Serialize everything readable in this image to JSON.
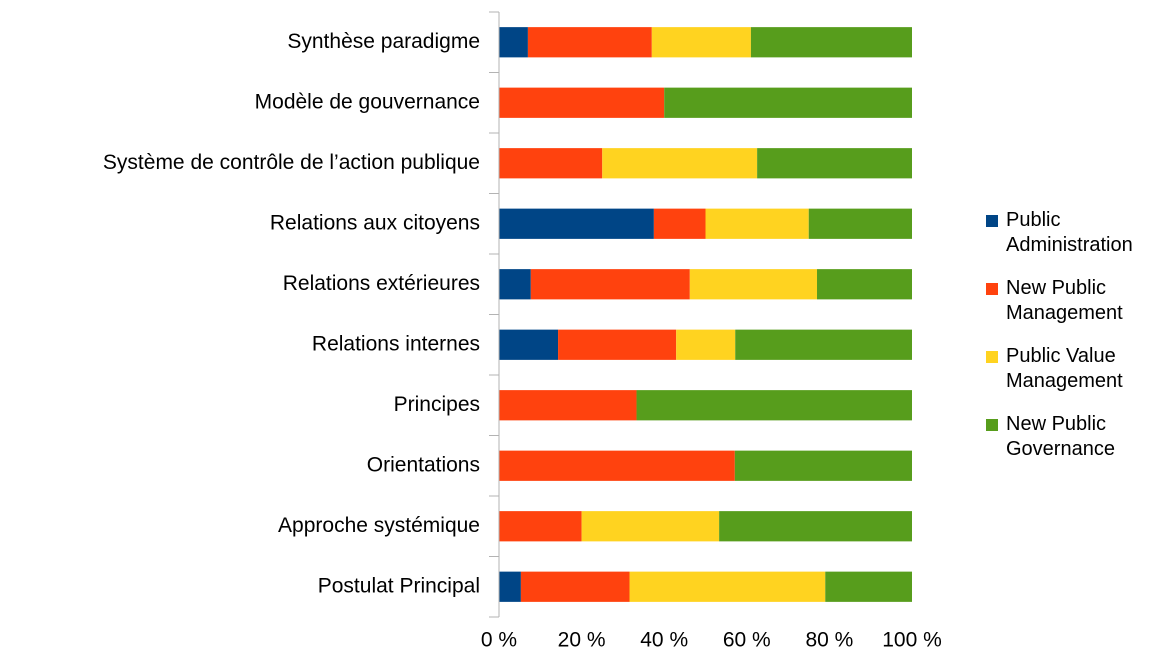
{
  "chart_data": {
    "type": "bar",
    "orientation": "horizontal",
    "stacked": "percent",
    "categories": [
      "Synthèse paradigme",
      "Modèle de gouvernance",
      "Système de contrôle de l’action publique",
      "Relations aux citoyens",
      "Relations extérieures",
      "Relations internes",
      "Principes",
      "Orientations",
      "Approche systémique",
      "Postulat Principal"
    ],
    "series": [
      {
        "name": "Public Administration",
        "color": "#004586",
        "values": [
          7,
          0,
          0,
          37.5,
          7.7,
          14.3,
          0,
          0,
          0,
          5.3
        ]
      },
      {
        "name": "New Public Management",
        "color": "#ff420e",
        "values": [
          30,
          40,
          25,
          12.5,
          38.5,
          28.6,
          33.3,
          57.1,
          20,
          26.3
        ]
      },
      {
        "name": "Public Value Management",
        "color": "#ffd320",
        "values": [
          24,
          0,
          37.5,
          25,
          30.8,
          14.3,
          0,
          0,
          33.3,
          47.4
        ]
      },
      {
        "name": "New Public Governance",
        "color": "#579d1c",
        "values": [
          39,
          60,
          37.5,
          25,
          23,
          42.8,
          66.7,
          42.9,
          46.7,
          21
        ]
      }
    ],
    "xlim": [
      0,
      100
    ],
    "xticks": [
      {
        "value": 0,
        "label": "0 %"
      },
      {
        "value": 20,
        "label": "20 %"
      },
      {
        "value": 40,
        "label": "40 %"
      },
      {
        "value": 60,
        "label": "60 %"
      },
      {
        "value": 80,
        "label": "80 %"
      },
      {
        "value": 100,
        "label": "100 %"
      }
    ],
    "grid": false,
    "legend": "right"
  }
}
